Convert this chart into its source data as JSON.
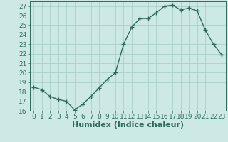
{
  "xlabel": "Humidex (Indice chaleur)",
  "x_values": [
    0,
    1,
    2,
    3,
    4,
    5,
    6,
    7,
    8,
    9,
    10,
    11,
    12,
    13,
    14,
    15,
    16,
    17,
    18,
    19,
    20,
    21,
    22,
    23
  ],
  "y_values": [
    18.5,
    18.2,
    17.5,
    17.2,
    17.0,
    16.1,
    16.7,
    17.5,
    18.4,
    19.3,
    20.0,
    23.0,
    24.8,
    25.7,
    25.7,
    26.3,
    27.0,
    27.1,
    26.6,
    26.8,
    26.5,
    24.5,
    23.0,
    21.9
  ],
  "line_color": "#2e6b5e",
  "marker": "+",
  "marker_size": 4,
  "bg_color": "#cce9e5",
  "grid_color": "#aacfca",
  "ylim": [
    16,
    27.5
  ],
  "yticks": [
    16,
    17,
    18,
    19,
    20,
    21,
    22,
    23,
    24,
    25,
    26,
    27
  ],
  "xlim": [
    -0.5,
    23.5
  ],
  "xticks": [
    0,
    1,
    2,
    3,
    4,
    5,
    6,
    7,
    8,
    9,
    10,
    11,
    12,
    13,
    14,
    15,
    16,
    17,
    18,
    19,
    20,
    21,
    22,
    23
  ],
  "tick_label_fontsize": 6.5,
  "xlabel_fontsize": 8
}
